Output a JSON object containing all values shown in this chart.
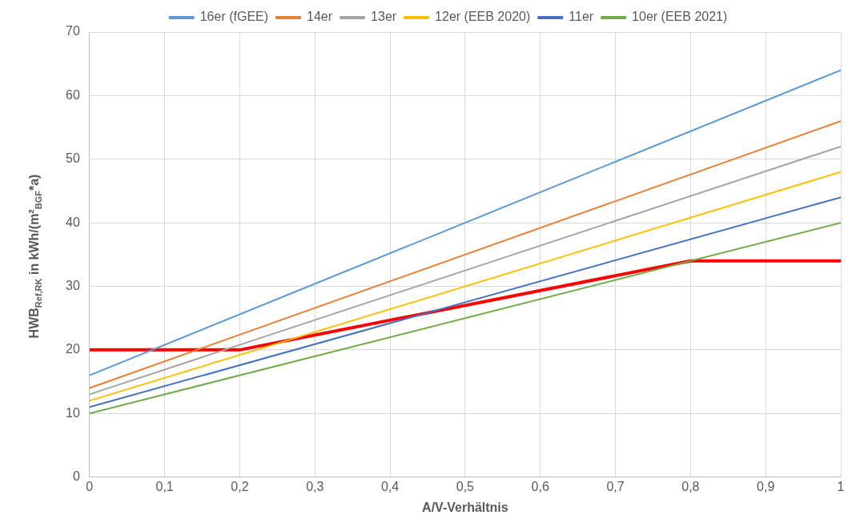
{
  "chart_data": {
    "type": "line",
    "xlabel": "A/V-Verhältnis",
    "ylabel": "HWB$_{Ref,RK}$ in kWh/(m²$_{BGF}$*a)",
    "xlim": [
      0,
      1
    ],
    "xticks": [
      0,
      {
        "value": 0.1,
        "label": "0,1"
      },
      {
        "value": 0.2,
        "label": "0,2"
      },
      {
        "value": 0.3,
        "label": "0,3"
      },
      {
        "value": 0.4,
        "label": "0,4"
      },
      {
        "value": 0.5,
        "label": "0,5"
      },
      {
        "value": 0.6,
        "label": "0,6"
      },
      {
        "value": 0.7,
        "label": "0,7"
      },
      {
        "value": 0.8,
        "label": "0,8"
      },
      {
        "value": 0.9,
        "label": "0,9"
      },
      1
    ],
    "ylim": [
      0,
      70
    ],
    "yticks": [
      0,
      10,
      20,
      30,
      40,
      50,
      60,
      70
    ],
    "grid": true,
    "legend": "top",
    "marker": "none",
    "line_style": "solid",
    "series": [
      {
        "name": "16er (fGEE)",
        "color": "#5b9bd5",
        "x": [
          0,
          1
        ],
        "values": [
          16,
          64
        ]
      },
      {
        "name": "14er",
        "color": "#ed7d31",
        "x": [
          0,
          1
        ],
        "values": [
          14,
          56
        ]
      },
      {
        "name": "13er",
        "color": "#a5a5a5",
        "x": [
          0,
          1
        ],
        "values": [
          13,
          52
        ]
      },
      {
        "name": "12er (EEB 2020)",
        "color": "#ffc000",
        "x": [
          0,
          1
        ],
        "values": [
          12,
          48
        ]
      },
      {
        "name": "11er",
        "color": "#4472c4",
        "x": [
          0,
          1
        ],
        "values": [
          11,
          44
        ]
      },
      {
        "name": "10er (EEB 2021)",
        "color": "#70ad47",
        "x": [
          0,
          1
        ],
        "values": [
          10,
          40
        ]
      },
      {
        "color": "#ff0000",
        "x": [
          0,
          0.2,
          0.8,
          1
        ],
        "values": [
          20,
          20,
          34,
          34
        ]
      }
    ]
  }
}
